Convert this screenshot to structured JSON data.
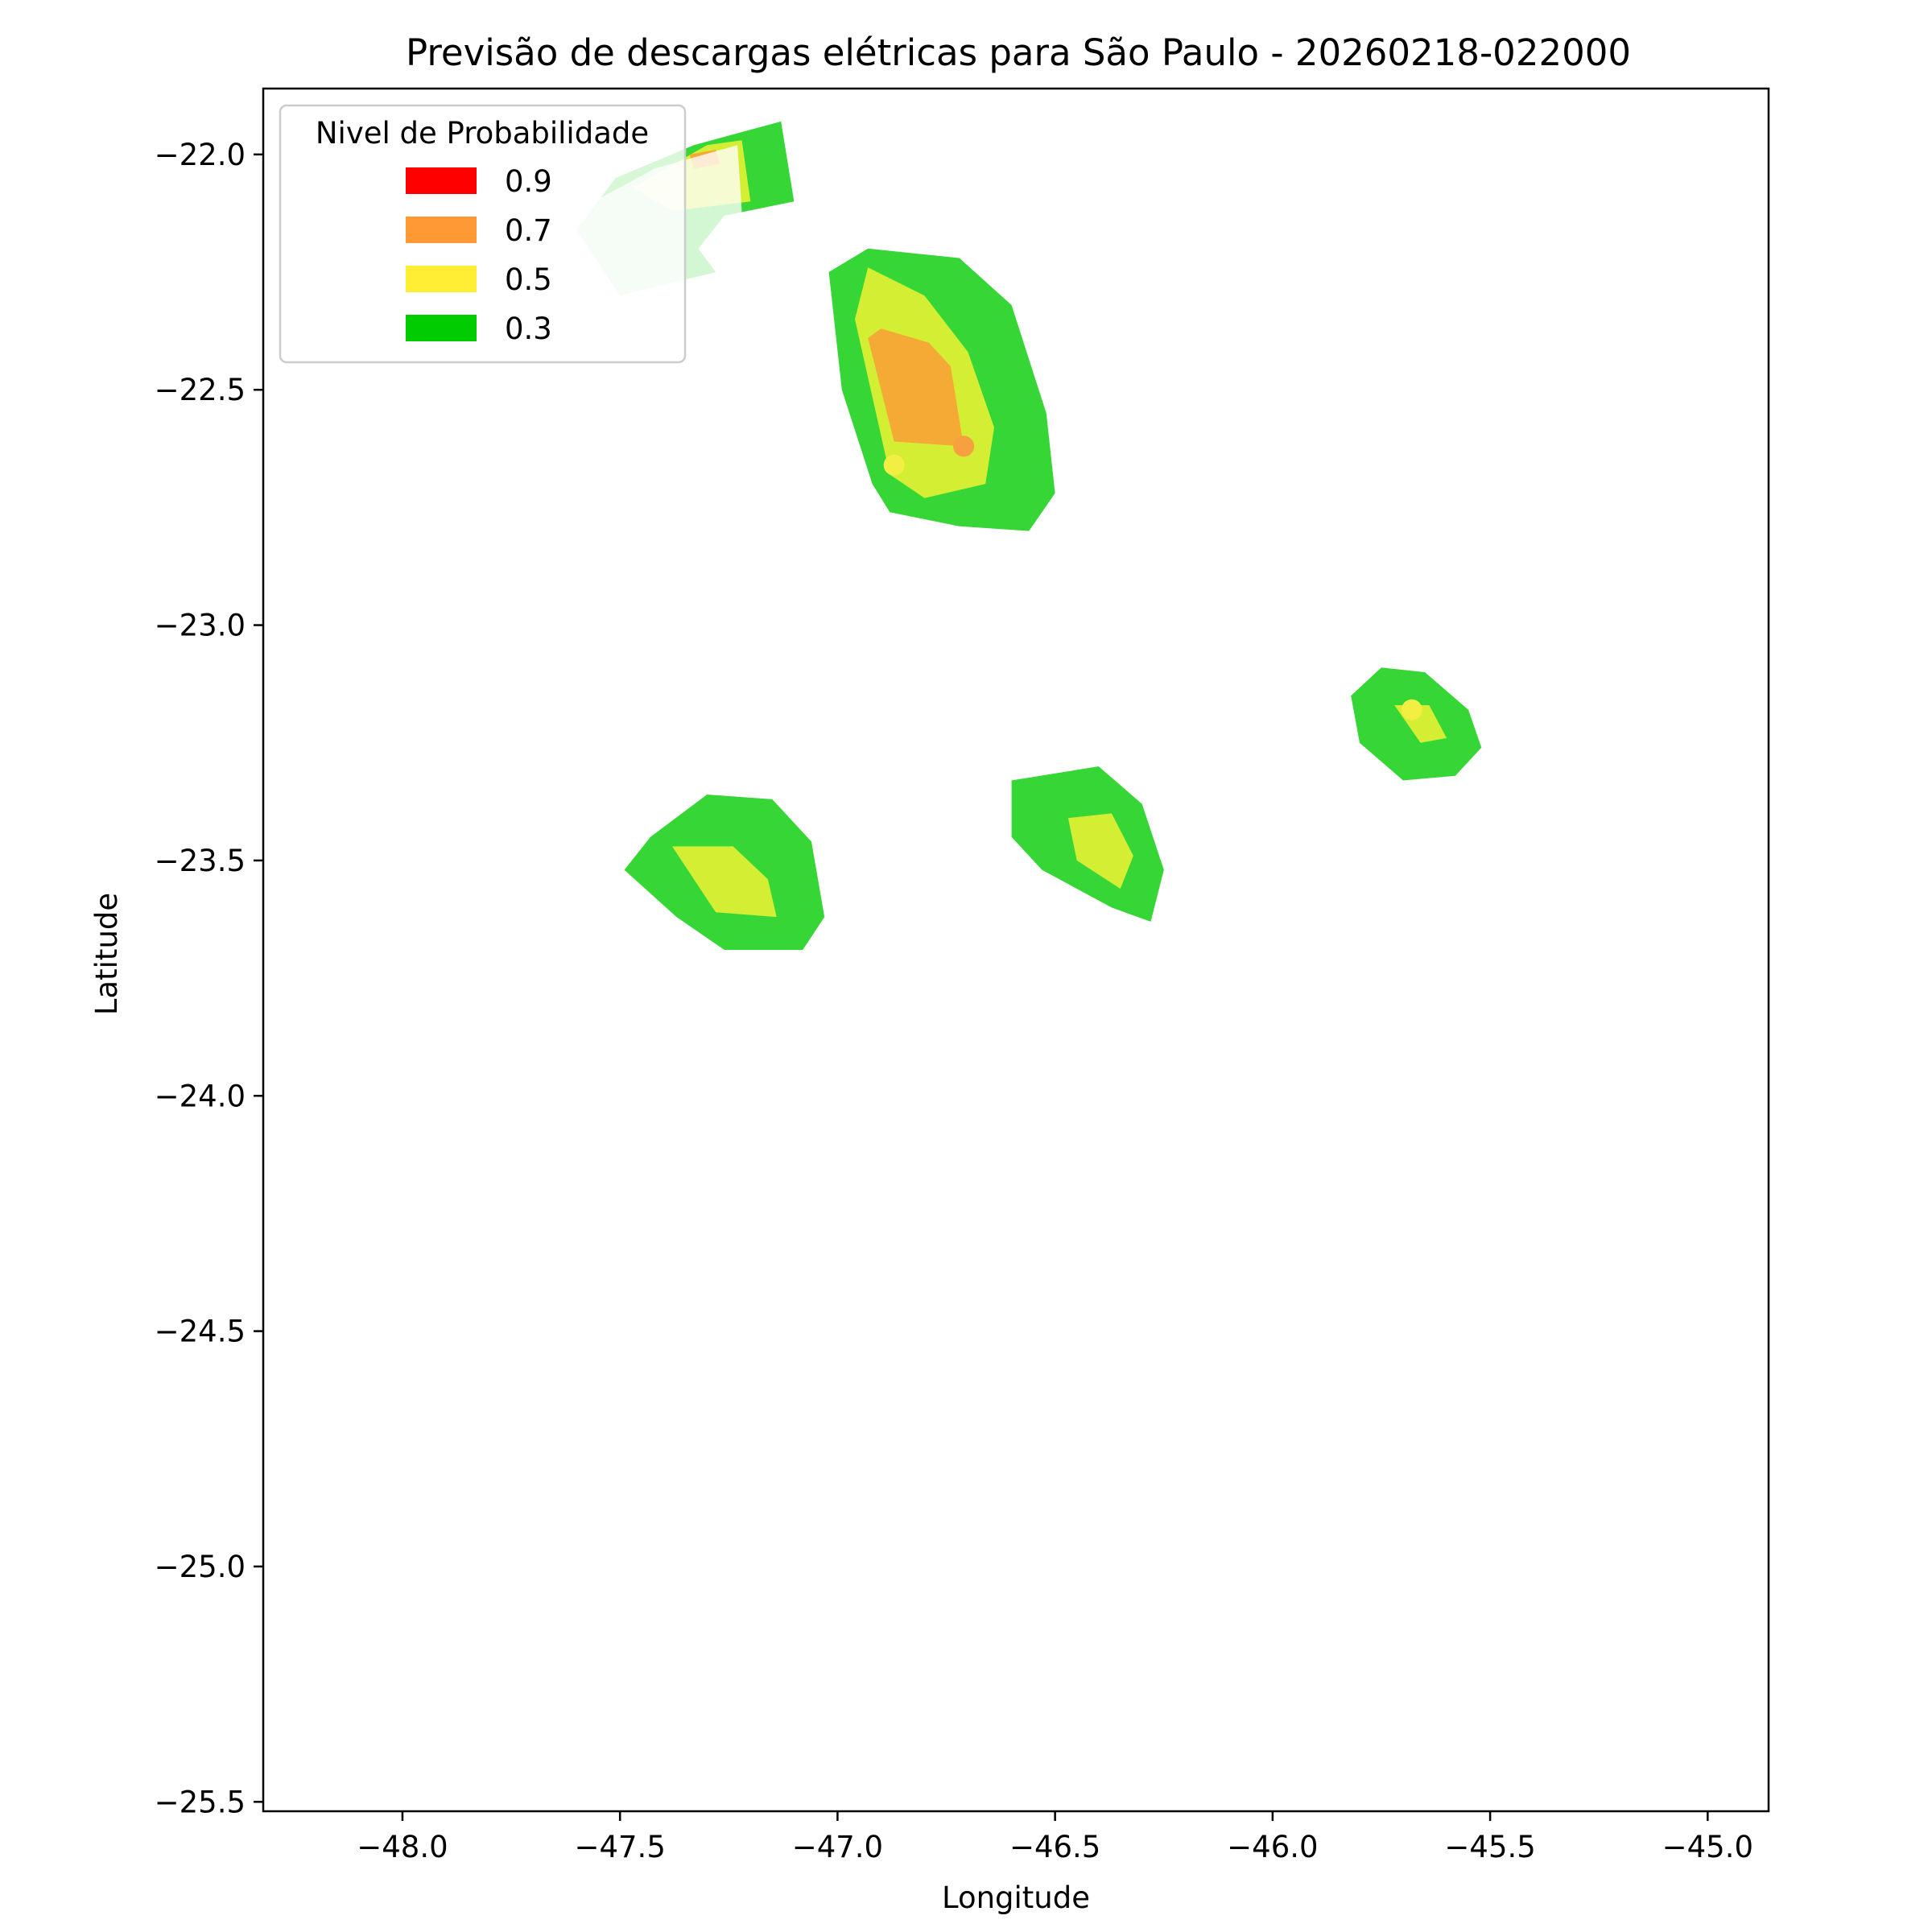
{
  "chart_data": {
    "type": "contour",
    "title": "Previsão de descargas elétricas para São Paulo - 20260218-022000",
    "xlabel": "Longitude",
    "ylabel": "Latitude",
    "xlim": [
      -48.32,
      -44.86
    ],
    "ylim": [
      -25.52,
      -21.86
    ],
    "xticks": [
      -48.0,
      -47.5,
      -47.0,
      -46.5,
      -46.0,
      -45.5,
      -45.0
    ],
    "xtick_labels": [
      "−48.0",
      "−47.5",
      "−47.0",
      "−46.5",
      "−46.0",
      "−45.5",
      "−45.0"
    ],
    "yticks": [
      -22.0,
      -22.5,
      -23.0,
      -23.5,
      -24.0,
      -24.5,
      -25.0,
      -25.5
    ],
    "ytick_labels": [
      "−22.0",
      "−22.5",
      "−23.0",
      "−23.5",
      "−24.0",
      "−24.5",
      "−25.0",
      "−25.5"
    ],
    "grid": false,
    "legend": {
      "title": "Nivel de Probabilidade",
      "placement": "upper-left",
      "entries": [
        {
          "label": "0.9",
          "color": "#ff0000"
        },
        {
          "label": "0.7",
          "color": "#ff9933"
        },
        {
          "label": "0.5",
          "color": "#ffee33"
        },
        {
          "label": "0.3",
          "color": "#00cc00"
        }
      ]
    },
    "level_colors": {
      "0.3": "#37d637",
      "0.5": "#d4ee33",
      "0.7": "#f6aa36"
    },
    "regions": [
      {
        "level": "0.3",
        "points": [
          [
            -46.93,
            -22.2
          ],
          [
            -46.72,
            -22.22
          ],
          [
            -46.6,
            -22.32
          ],
          [
            -46.52,
            -22.55
          ],
          [
            -46.5,
            -22.72
          ],
          [
            -46.56,
            -22.8
          ],
          [
            -46.72,
            -22.79
          ],
          [
            -46.88,
            -22.76
          ],
          [
            -46.92,
            -22.7
          ],
          [
            -46.99,
            -22.5
          ],
          [
            -47.02,
            -22.25
          ]
        ]
      },
      {
        "level": "0.5",
        "points": [
          [
            -46.93,
            -22.24
          ],
          [
            -46.8,
            -22.3
          ],
          [
            -46.7,
            -22.42
          ],
          [
            -46.64,
            -22.58
          ],
          [
            -46.66,
            -22.7
          ],
          [
            -46.8,
            -22.73
          ],
          [
            -46.88,
            -22.68
          ],
          [
            -46.96,
            -22.35
          ]
        ]
      },
      {
        "level": "0.7",
        "points": [
          [
            -46.9,
            -22.37
          ],
          [
            -46.79,
            -22.4
          ],
          [
            -46.74,
            -22.45
          ],
          [
            -46.71,
            -22.62
          ],
          [
            -46.87,
            -22.61
          ],
          [
            -46.93,
            -22.39
          ]
        ]
      },
      {
        "level": "0.3",
        "points": [
          [
            -47.51,
            -22.05
          ],
          [
            -47.33,
            -21.98
          ],
          [
            -47.13,
            -21.93
          ],
          [
            -47.1,
            -22.1
          ],
          [
            -47.26,
            -22.13
          ],
          [
            -47.32,
            -22.2
          ],
          [
            -47.28,
            -22.25
          ],
          [
            -47.5,
            -22.3
          ],
          [
            -47.6,
            -22.16
          ]
        ]
      },
      {
        "level": "0.5",
        "points": [
          [
            -47.47,
            -22.07
          ],
          [
            -47.3,
            -21.98
          ],
          [
            -47.22,
            -21.97
          ],
          [
            -47.2,
            -22.1
          ],
          [
            -47.38,
            -22.12
          ]
        ]
      },
      {
        "level": "0.7",
        "points": [
          [
            -47.34,
            -22.0
          ],
          [
            -47.28,
            -21.99
          ],
          [
            -47.27,
            -22.02
          ],
          [
            -47.33,
            -22.03
          ]
        ]
      },
      {
        "level": "0.3",
        "points": [
          [
            -47.43,
            -23.45
          ],
          [
            -47.3,
            -23.36
          ],
          [
            -47.15,
            -23.37
          ],
          [
            -47.06,
            -23.46
          ],
          [
            -47.03,
            -23.62
          ],
          [
            -47.08,
            -23.69
          ],
          [
            -47.26,
            -23.69
          ],
          [
            -47.37,
            -23.62
          ],
          [
            -47.49,
            -23.52
          ]
        ]
      },
      {
        "level": "0.5",
        "points": [
          [
            -47.38,
            -23.47
          ],
          [
            -47.24,
            -23.47
          ],
          [
            -47.16,
            -23.54
          ],
          [
            -47.14,
            -23.62
          ],
          [
            -47.28,
            -23.61
          ]
        ]
      },
      {
        "level": "0.3",
        "points": [
          [
            -46.6,
            -23.33
          ],
          [
            -46.4,
            -23.3
          ],
          [
            -46.3,
            -23.38
          ],
          [
            -46.25,
            -23.52
          ],
          [
            -46.28,
            -23.63
          ],
          [
            -46.37,
            -23.6
          ],
          [
            -46.53,
            -23.52
          ],
          [
            -46.6,
            -23.45
          ]
        ]
      },
      {
        "level": "0.5",
        "points": [
          [
            -46.47,
            -23.41
          ],
          [
            -46.37,
            -23.4
          ],
          [
            -46.32,
            -23.49
          ],
          [
            -46.35,
            -23.56
          ],
          [
            -46.45,
            -23.5
          ]
        ]
      },
      {
        "level": "0.3",
        "points": [
          [
            -45.82,
            -23.15
          ],
          [
            -45.75,
            -23.09
          ],
          [
            -45.65,
            -23.1
          ],
          [
            -45.55,
            -23.18
          ],
          [
            -45.52,
            -23.26
          ],
          [
            -45.58,
            -23.32
          ],
          [
            -45.7,
            -23.33
          ],
          [
            -45.8,
            -23.25
          ]
        ]
      },
      {
        "level": "0.5",
        "points": [
          [
            -45.72,
            -23.17
          ],
          [
            -45.64,
            -23.17
          ],
          [
            -45.6,
            -23.24
          ],
          [
            -45.66,
            -23.25
          ]
        ]
      }
    ],
    "markers": [
      {
        "lon": -46.71,
        "lat": -22.62,
        "color": "#f6a040"
      },
      {
        "lon": -46.87,
        "lat": -22.66,
        "color": "#f2ee44"
      },
      {
        "lon": -45.68,
        "lat": -23.18,
        "color": "#f2ee44"
      }
    ]
  }
}
